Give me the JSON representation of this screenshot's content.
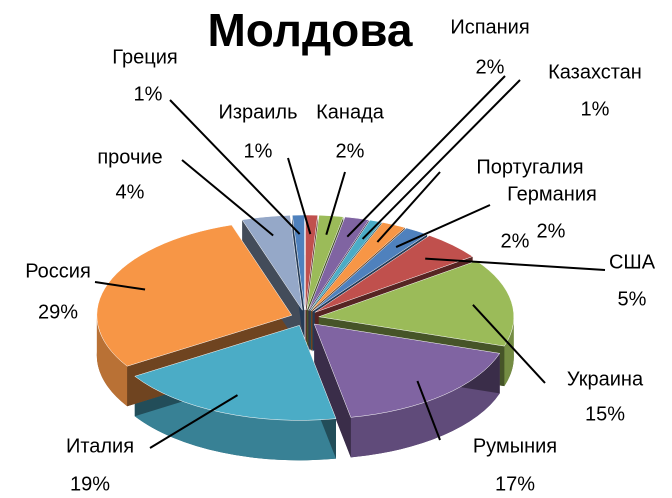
{
  "chart_data": {
    "type": "pie",
    "title": "Молдова",
    "categories": [
      "Израиль",
      "Канада",
      "Испания",
      "Казахстан",
      "Португалия",
      "Германия",
      "США",
      "Украина",
      "Румыния",
      "Италия",
      "Россия",
      "прочие",
      "Греция"
    ],
    "values": [
      1,
      2,
      2,
      1,
      2,
      2,
      5,
      15,
      17,
      19,
      29,
      4,
      1
    ],
    "value_labels": [
      "1%",
      "2%",
      "2%",
      "1%",
      "2%",
      "2%",
      "5%",
      "15%",
      "17%",
      "19%",
      "29%",
      "4%",
      "1%"
    ],
    "colors": [
      "#c0504d",
      "#9bbb59",
      "#8064a2",
      "#4bacc6",
      "#f79646",
      "#4f81bd",
      "#c0504d",
      "#9bbb59",
      "#8064a2",
      "#4bacc6",
      "#f79646",
      "#95a8c8",
      "#4f81bd"
    ]
  }
}
